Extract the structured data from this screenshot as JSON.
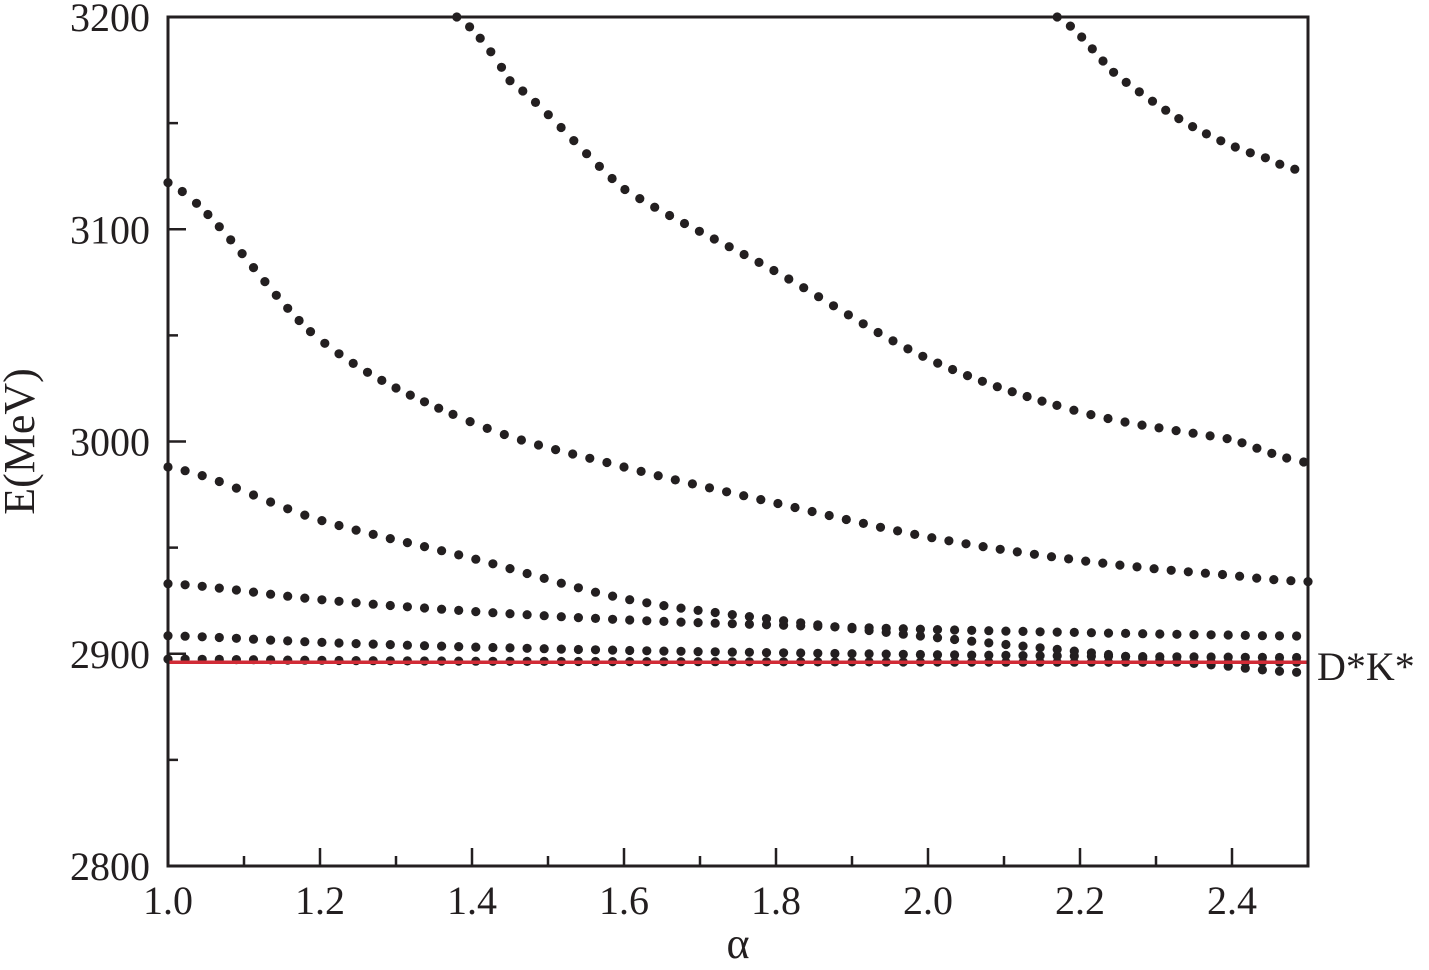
{
  "chart_data": {
    "type": "scatter",
    "xlabel": "α",
    "ylabel": "E(MeV)",
    "xlim": [
      1.0,
      2.5
    ],
    "ylim": [
      2800,
      3200
    ],
    "xticks": [
      "1.0",
      "1.2",
      "1.4",
      "1.6",
      "1.8",
      "2.0",
      "2.2",
      "2.4"
    ],
    "yticks": [
      "2800",
      "2900",
      "3000",
      "3100",
      "3200"
    ],
    "grid": false,
    "legend": "none",
    "marker_color": "#231f20",
    "series": [
      {
        "x": [
          1.0,
          1.2,
          1.4,
          1.6,
          1.8,
          2.0,
          2.2,
          2.4,
          2.5
        ],
        "y": [
          2897.5,
          2896.9,
          2896.5,
          2896.3,
          2896.2,
          2896.1,
          2896.0,
          2896.0,
          2896.0
        ]
      },
      {
        "x": [
          1.0,
          1.2,
          1.4,
          1.6,
          1.8,
          2.0,
          2.2,
          2.4,
          2.5
        ],
        "y": [
          2908.5,
          2905.4,
          2903.2,
          2901.6,
          2900.5,
          2899.6,
          2898.9,
          2898.4,
          2898.2
        ]
      },
      {
        "x": [
          1.0,
          1.2,
          1.4,
          1.6,
          1.8,
          2.0,
          2.2,
          2.4,
          2.5
        ],
        "y": [
          2933,
          2925.5,
          2920,
          2916,
          2913.5,
          2911.5,
          2910,
          2908.8,
          2908.3
        ]
      },
      {
        "x": [
          1.0,
          1.2,
          1.4,
          1.6,
          1.8,
          2.0,
          2.2,
          2.4,
          2.5
        ],
        "y": [
          2988,
          2963,
          2945,
          2926,
          2916,
          2908,
          2901,
          2894,
          2891
        ]
      },
      {
        "x": [
          1.0,
          1.2,
          1.4,
          1.6,
          1.8,
          2.0,
          2.2,
          2.4,
          2.5
        ],
        "y": [
          3122,
          3048,
          3009,
          2988,
          2971,
          2955,
          2944,
          2937,
          2934
        ]
      },
      {
        "x": [
          1.38,
          1.45,
          1.6,
          1.8,
          2.0,
          2.2,
          2.4,
          2.5
        ],
        "y": [
          3200,
          3170,
          3119,
          3080,
          3039,
          3014,
          3001,
          2990
        ]
      },
      {
        "x": [
          2.17,
          2.25,
          2.35,
          2.45,
          2.5
        ],
        "y": [
          3200,
          3172,
          3148,
          3133,
          3127
        ]
      }
    ],
    "threshold": {
      "label": "D*K*",
      "value": 2896,
      "color": "#d12b36"
    }
  }
}
